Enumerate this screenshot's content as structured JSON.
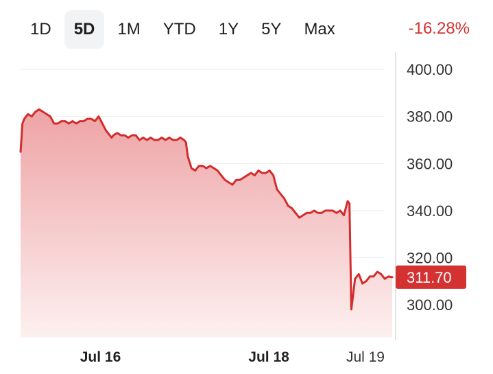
{
  "range_tabs": [
    {
      "label": "1D",
      "active": false
    },
    {
      "label": "5D",
      "active": true
    },
    {
      "label": "1M",
      "active": false
    },
    {
      "label": "YTD",
      "active": false
    },
    {
      "label": "1Y",
      "active": false
    },
    {
      "label": "5Y",
      "active": false
    },
    {
      "label": "Max",
      "active": false
    }
  ],
  "change_text": "-16.28%",
  "colors": {
    "line": "#d42c2c",
    "fill_top": "#eea3a5",
    "fill_bottom": "#fdf0f0",
    "grid": "#ececec",
    "negative": "#d43131",
    "active_tab_bg": "#f1f3f5"
  },
  "chart_data": {
    "type": "area",
    "ylim": [
      286,
      405
    ],
    "yticks": [
      400,
      380,
      360,
      340,
      320,
      300
    ],
    "ytick_labels": [
      "400.00",
      "380.00",
      "360.00",
      "340.00",
      "320.00",
      "300.00"
    ],
    "xlim": [
      0,
      100
    ],
    "xticks": [
      {
        "x": 21.5,
        "label": "Jul 16",
        "bold": true
      },
      {
        "x": 66.8,
        "label": "Jul 18",
        "bold": true
      },
      {
        "x": 92.8,
        "label": "Jul 19",
        "bold": false
      }
    ],
    "current_price_label": "311.70",
    "current_price": 311.7,
    "series": [
      {
        "x": [
          0,
          0.5,
          1,
          2,
          3,
          4,
          5,
          6,
          7,
          8,
          9,
          10,
          11,
          12,
          13,
          14,
          15,
          16,
          17,
          18,
          19,
          20,
          21,
          22,
          23,
          24,
          24.5,
          25,
          26,
          27,
          28,
          29,
          30,
          31,
          32,
          33,
          34,
          35,
          36,
          37,
          38,
          39,
          40,
          41,
          42,
          43,
          44,
          44.5,
          45,
          46,
          47,
          48,
          49,
          50,
          51,
          52,
          53,
          54,
          55,
          56,
          57,
          58,
          59,
          60,
          61,
          62,
          63,
          64,
          65,
          66,
          67,
          68,
          69,
          70,
          71,
          72,
          73,
          74,
          75,
          76,
          77,
          78,
          79,
          80,
          81,
          82,
          83,
          84,
          85,
          86,
          87,
          87.5,
          88,
          88.5,
          89,
          90,
          91,
          92,
          93,
          94,
          95,
          96,
          97,
          98,
          99,
          100
        ],
        "y": [
          365,
          377,
          379,
          381,
          380,
          382,
          383,
          382,
          381,
          380,
          377,
          377,
          378,
          378,
          377,
          378,
          377,
          378,
          378,
          379,
          379,
          378,
          380,
          377,
          374,
          372,
          371,
          372,
          373,
          372,
          372,
          371,
          372,
          372,
          370,
          371,
          370,
          371,
          370,
          370,
          371,
          370,
          371,
          370,
          370,
          371,
          370,
          369,
          363,
          358,
          357,
          359,
          359,
          358,
          359,
          358,
          357,
          355,
          353,
          352,
          351,
          353,
          353,
          354,
          355,
          356,
          355,
          357,
          356,
          356,
          357,
          355,
          349,
          347,
          345,
          342,
          341,
          339,
          337,
          338,
          339,
          339,
          340,
          339,
          339,
          340,
          340,
          340,
          339,
          340,
          338,
          341,
          344,
          343,
          298,
          311,
          313,
          309,
          310,
          312,
          312,
          314,
          313,
          311,
          312,
          311.7
        ]
      }
    ]
  }
}
